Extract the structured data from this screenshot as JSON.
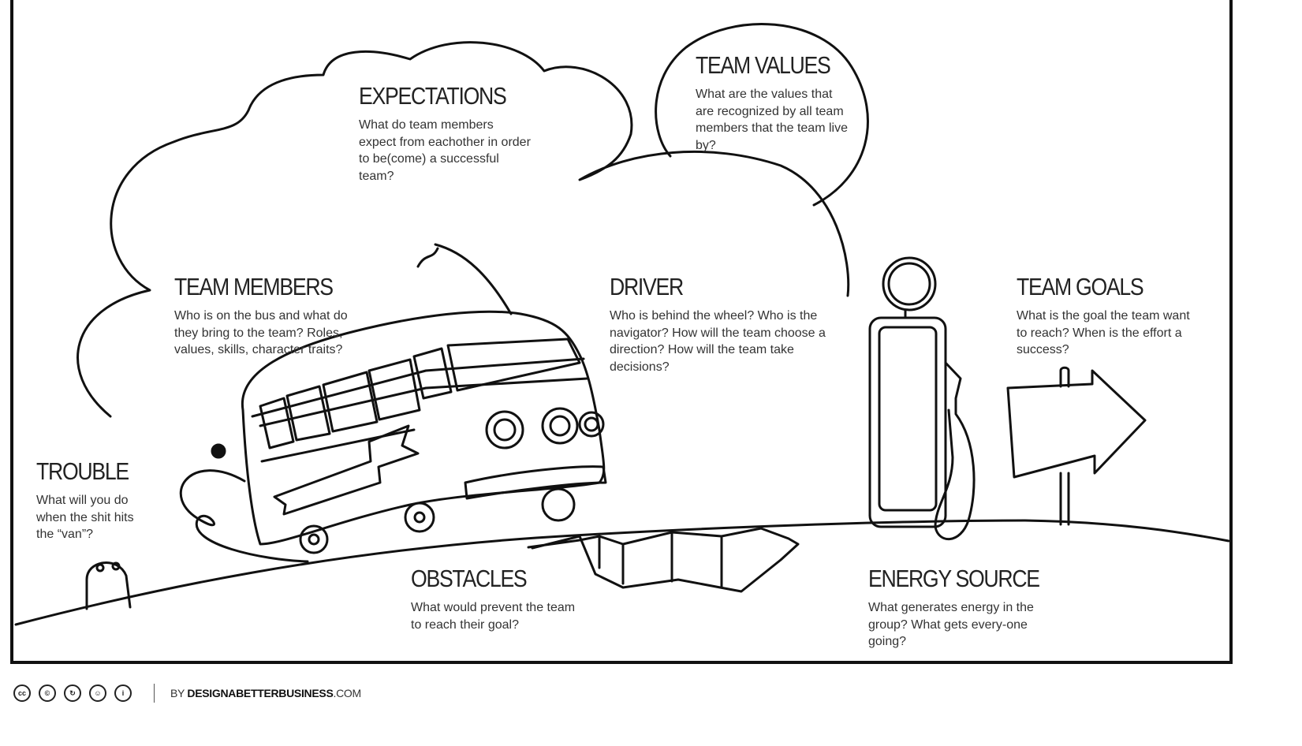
{
  "sections": {
    "expectations": {
      "title": "EXPECTATIONS",
      "text": "What do team members expect from eachother in order to be(come) a successful team?"
    },
    "team_values": {
      "title": "TEAM VALUES",
      "text": "What are the values that are recognized by all team members that the team live by?"
    },
    "team_members": {
      "title": "TEAM MEMBERS",
      "text": "Who is on the bus and what do they bring to the team? Roles, values, skills, character traits?"
    },
    "driver": {
      "title": "DRIVER",
      "text": "Who is behind the wheel? Who is the navigator? How will the team choose a direction? How will the team take decisions?"
    },
    "team_goals": {
      "title": "TEAM GOALS",
      "text": "What is the goal the team want to reach? When is the effort a success?"
    },
    "trouble": {
      "title": "TROUBLE",
      "text": "What will you do when the shit hits the “van”?"
    },
    "obstacles": {
      "title": "OBSTACLES",
      "text": "What would prevent the team to reach their goal?"
    },
    "energy_source": {
      "title": "ENERGY SOURCE",
      "text": "What generates energy in the group? What gets every-one going?"
    }
  },
  "footer": {
    "license_icons": [
      "cc",
      "©",
      "↻",
      "☺",
      "i"
    ],
    "by": "BY ",
    "brand_bold": "DESIGNABETTERBUSINESS",
    "brand_suffix": ".COM"
  }
}
